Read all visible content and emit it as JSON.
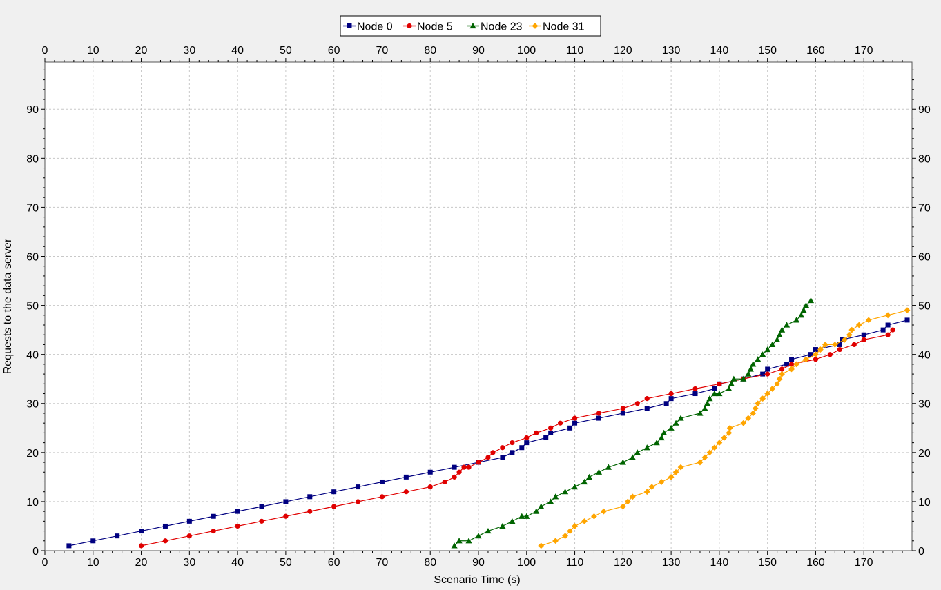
{
  "chart_data": {
    "type": "line",
    "xlabel": "Scenario Time (s)",
    "ylabel": "Requests to the data server",
    "xlim": [
      0,
      180
    ],
    "ylim": [
      0,
      100
    ],
    "x_ticks": [
      0,
      10,
      20,
      30,
      40,
      50,
      60,
      70,
      80,
      90,
      100,
      110,
      120,
      130,
      140,
      150,
      160,
      170
    ],
    "y_ticks": [
      0,
      10,
      20,
      30,
      40,
      50,
      60,
      70,
      80,
      90
    ],
    "grid": true,
    "legend_position": "top-center",
    "series": [
      {
        "name": "Node 0",
        "color": "#000080",
        "marker": "square",
        "points": [
          [
            5,
            1
          ],
          [
            10,
            2
          ],
          [
            15,
            3
          ],
          [
            20,
            4
          ],
          [
            25,
            5
          ],
          [
            30,
            6
          ],
          [
            35,
            7
          ],
          [
            40,
            8
          ],
          [
            45,
            9
          ],
          [
            50,
            10
          ],
          [
            55,
            11
          ],
          [
            60,
            12
          ],
          [
            65,
            13
          ],
          [
            70,
            14
          ],
          [
            75,
            15
          ],
          [
            80,
            16
          ],
          [
            85,
            17
          ],
          [
            90,
            18
          ],
          [
            95,
            19
          ],
          [
            97,
            20
          ],
          [
            99,
            21
          ],
          [
            100,
            22
          ],
          [
            104,
            23
          ],
          [
            105,
            24
          ],
          [
            109,
            25
          ],
          [
            110,
            26
          ],
          [
            115,
            27
          ],
          [
            120,
            28
          ],
          [
            125,
            29
          ],
          [
            129,
            30
          ],
          [
            130,
            31
          ],
          [
            135,
            32
          ],
          [
            139,
            33
          ],
          [
            140,
            34
          ],
          [
            145,
            35
          ],
          [
            149,
            36
          ],
          [
            150,
            37
          ],
          [
            154,
            38
          ],
          [
            155,
            39
          ],
          [
            159,
            40
          ],
          [
            160,
            41
          ],
          [
            165,
            42
          ],
          [
            165.5,
            43
          ],
          [
            170,
            44
          ],
          [
            174,
            45
          ],
          [
            175,
            46
          ],
          [
            179,
            47
          ]
        ]
      },
      {
        "name": "Node 5",
        "color": "#e00000",
        "marker": "circle",
        "points": [
          [
            20,
            1
          ],
          [
            25,
            2
          ],
          [
            30,
            3
          ],
          [
            35,
            4
          ],
          [
            40,
            5
          ],
          [
            45,
            6
          ],
          [
            50,
            7
          ],
          [
            55,
            8
          ],
          [
            60,
            9
          ],
          [
            65,
            10
          ],
          [
            70,
            11
          ],
          [
            75,
            12
          ],
          [
            80,
            13
          ],
          [
            83,
            14
          ],
          [
            85,
            15
          ],
          [
            86,
            16
          ],
          [
            87,
            17
          ],
          [
            88,
            17
          ],
          [
            90,
            18
          ],
          [
            92,
            19
          ],
          [
            93,
            20
          ],
          [
            95,
            21
          ],
          [
            97,
            22
          ],
          [
            100,
            23
          ],
          [
            102,
            24
          ],
          [
            105,
            25
          ],
          [
            107,
            26
          ],
          [
            110,
            27
          ],
          [
            115,
            28
          ],
          [
            120,
            29
          ],
          [
            123,
            30
          ],
          [
            125,
            31
          ],
          [
            130,
            32
          ],
          [
            135,
            33
          ],
          [
            140,
            34
          ],
          [
            145,
            35
          ],
          [
            150,
            36
          ],
          [
            153,
            37
          ],
          [
            155,
            38
          ],
          [
            160,
            39
          ],
          [
            163,
            40
          ],
          [
            165,
            41
          ],
          [
            168,
            42
          ],
          [
            170,
            43
          ],
          [
            175,
            44
          ],
          [
            176,
            45
          ]
        ]
      },
      {
        "name": "Node 23",
        "color": "#006400",
        "marker": "triangle",
        "points": [
          [
            85,
            1
          ],
          [
            86,
            2
          ],
          [
            88,
            2
          ],
          [
            90,
            3
          ],
          [
            92,
            4
          ],
          [
            95,
            5
          ],
          [
            97,
            6
          ],
          [
            99,
            7
          ],
          [
            100,
            7
          ],
          [
            102,
            8
          ],
          [
            103,
            9
          ],
          [
            105,
            10
          ],
          [
            106,
            11
          ],
          [
            108,
            12
          ],
          [
            110,
            13
          ],
          [
            112,
            14
          ],
          [
            113,
            15
          ],
          [
            115,
            16
          ],
          [
            117,
            17
          ],
          [
            120,
            18
          ],
          [
            122,
            19
          ],
          [
            123,
            20
          ],
          [
            125,
            21
          ],
          [
            127,
            22
          ],
          [
            128,
            23
          ],
          [
            128.5,
            24
          ],
          [
            130,
            25
          ],
          [
            131,
            26
          ],
          [
            132,
            27
          ],
          [
            136,
            28
          ],
          [
            137,
            29
          ],
          [
            137.5,
            30
          ],
          [
            138,
            31
          ],
          [
            139,
            32
          ],
          [
            140,
            32
          ],
          [
            142,
            33
          ],
          [
            142.5,
            34
          ],
          [
            143,
            35
          ],
          [
            145,
            35
          ],
          [
            146,
            36
          ],
          [
            146.5,
            37
          ],
          [
            147,
            38
          ],
          [
            148,
            39
          ],
          [
            149,
            40
          ],
          [
            150,
            41
          ],
          [
            151,
            42
          ],
          [
            152,
            43
          ],
          [
            152.5,
            44
          ],
          [
            153,
            45
          ],
          [
            154,
            46
          ],
          [
            156,
            47
          ],
          [
            157,
            48
          ],
          [
            157.5,
            49
          ],
          [
            158,
            50
          ],
          [
            159,
            51
          ]
        ]
      },
      {
        "name": "Node 31",
        "color": "#ffa500",
        "marker": "diamond",
        "points": [
          [
            103,
            1
          ],
          [
            106,
            2
          ],
          [
            108,
            3
          ],
          [
            109,
            4
          ],
          [
            110,
            5
          ],
          [
            112,
            6
          ],
          [
            114,
            7
          ],
          [
            116,
            8
          ],
          [
            120,
            9
          ],
          [
            121,
            10
          ],
          [
            122,
            11
          ],
          [
            125,
            12
          ],
          [
            126,
            13
          ],
          [
            128,
            14
          ],
          [
            130,
            15
          ],
          [
            131,
            16
          ],
          [
            132,
            17
          ],
          [
            136,
            18
          ],
          [
            137,
            19
          ],
          [
            138,
            20
          ],
          [
            139,
            21
          ],
          [
            140,
            22
          ],
          [
            141,
            23
          ],
          [
            142,
            24
          ],
          [
            142.2,
            25
          ],
          [
            145,
            26
          ],
          [
            146,
            27
          ],
          [
            147,
            28
          ],
          [
            147.5,
            29
          ],
          [
            148,
            30
          ],
          [
            149,
            31
          ],
          [
            150,
            32
          ],
          [
            151,
            33
          ],
          [
            152,
            34
          ],
          [
            152.5,
            35
          ],
          [
            153,
            36
          ],
          [
            155,
            37
          ],
          [
            156,
            38
          ],
          [
            158,
            39
          ],
          [
            160,
            40
          ],
          [
            161,
            41
          ],
          [
            162,
            42
          ],
          [
            164,
            42
          ],
          [
            166,
            43
          ],
          [
            167,
            44
          ],
          [
            167.5,
            45
          ],
          [
            169,
            46
          ],
          [
            171,
            47
          ],
          [
            175,
            48
          ],
          [
            179,
            49
          ]
        ]
      }
    ]
  }
}
